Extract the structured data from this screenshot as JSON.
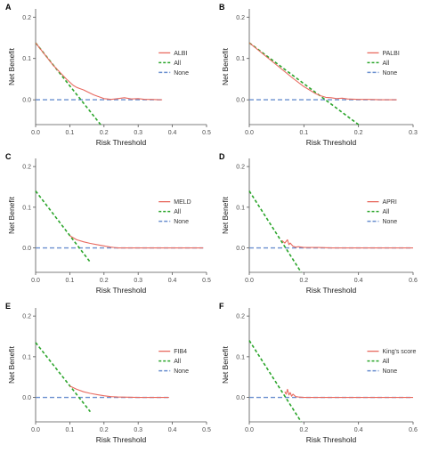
{
  "colors": {
    "model": "#e8695f",
    "all": "#2aa52a",
    "none": "#6a8fcf",
    "axis": "#555555"
  },
  "chart_data": [
    {
      "panel": "A",
      "type": "line",
      "xlabel": "Risk Threshold",
      "ylabel": "Net Benefit",
      "xlim": [
        0,
        0.5
      ],
      "xticks": [
        "0.0",
        "0.1",
        "0.2",
        "0.3",
        "0.4",
        "0.5"
      ],
      "ylim": [
        -0.06,
        0.22
      ],
      "yticks": [
        "0.0",
        "0.1",
        "0.2"
      ],
      "legend_position": "right",
      "series": [
        {
          "name": "ALBI",
          "key": "model",
          "style": "solid",
          "x": [
            0.0,
            0.05,
            0.09,
            0.11,
            0.12,
            0.13,
            0.14,
            0.15,
            0.16,
            0.17,
            0.18,
            0.19,
            0.2,
            0.21,
            0.22,
            0.24,
            0.26,
            0.28,
            0.3,
            0.32,
            0.34,
            0.36,
            0.37
          ],
          "y": [
            0.138,
            0.085,
            0.05,
            0.035,
            0.03,
            0.027,
            0.024,
            0.02,
            0.016,
            0.012,
            0.009,
            0.006,
            0.003,
            0.002,
            0.001,
            0.003,
            0.005,
            0.002,
            0.003,
            0.001,
            0.001,
            0.0,
            0.0
          ]
        },
        {
          "name": "All",
          "key": "all",
          "style": "dashed",
          "x": [
            0.0,
            0.19
          ],
          "y": [
            0.138,
            -0.06
          ]
        },
        {
          "name": "None",
          "key": "none",
          "style": "dashed",
          "x": [
            0.0,
            0.37
          ],
          "y": [
            0.0,
            0.0
          ]
        }
      ]
    },
    {
      "panel": "B",
      "type": "line",
      "xlabel": "Risk Threshold",
      "ylabel": "Net Benefit",
      "xlim": [
        0,
        0.3
      ],
      "xticks": [
        "0.0",
        "0.1",
        "0.2",
        "0.3"
      ],
      "ylim": [
        -0.06,
        0.22
      ],
      "yticks": [
        "0.0",
        "0.1",
        "0.2"
      ],
      "legend_position": "right",
      "series": [
        {
          "name": "PALBI",
          "key": "model",
          "style": "solid",
          "x": [
            0.0,
            0.04,
            0.08,
            0.1,
            0.11,
            0.12,
            0.13,
            0.135,
            0.14,
            0.15,
            0.16,
            0.17,
            0.18,
            0.2,
            0.22,
            0.24,
            0.26,
            0.27
          ],
          "y": [
            0.138,
            0.095,
            0.052,
            0.032,
            0.024,
            0.016,
            0.01,
            0.008,
            0.006,
            0.005,
            0.003,
            0.004,
            0.002,
            0.001,
            0.001,
            0.0,
            0.0,
            0.0
          ]
        },
        {
          "name": "All",
          "key": "all",
          "style": "dashed",
          "x": [
            0.0,
            0.2
          ],
          "y": [
            0.138,
            -0.06
          ]
        },
        {
          "name": "None",
          "key": "none",
          "style": "dashed",
          "x": [
            0.0,
            0.27
          ],
          "y": [
            0.0,
            0.0
          ]
        }
      ]
    },
    {
      "panel": "C",
      "type": "line",
      "xlabel": "Risk Threshold",
      "ylabel": "Net Benefit",
      "xlim": [
        0,
        0.5
      ],
      "xticks": [
        "0.0",
        "0.1",
        "0.2",
        "0.3",
        "0.4",
        "0.5"
      ],
      "ylim": [
        -0.06,
        0.22
      ],
      "yticks": [
        "0.0",
        "0.1",
        "0.2"
      ],
      "legend_position": "right",
      "series": [
        {
          "name": "MELD",
          "key": "model",
          "style": "solid",
          "x": [
            0.1,
            0.12,
            0.14,
            0.16,
            0.18,
            0.2,
            0.22,
            0.24,
            0.3,
            0.4,
            0.49
          ],
          "y": [
            0.03,
            0.02,
            0.015,
            0.011,
            0.008,
            0.005,
            0.002,
            0.0,
            0.0,
            0.0,
            0.0
          ]
        },
        {
          "name": "All",
          "key": "all",
          "style": "dashed",
          "x": [
            0.0,
            0.16
          ],
          "y": [
            0.14,
            -0.035
          ]
        },
        {
          "name": "None",
          "key": "none",
          "style": "dashed",
          "x": [
            0.0,
            0.49
          ],
          "y": [
            0.0,
            0.0
          ]
        }
      ]
    },
    {
      "panel": "D",
      "type": "line",
      "xlabel": "Risk Threshold",
      "ylabel": "Net Benefit",
      "xlim": [
        0,
        0.6
      ],
      "xticks": [
        "0.0",
        "0.2",
        "0.4",
        "0.6"
      ],
      "ylim": [
        -0.06,
        0.22
      ],
      "yticks": [
        "0.0",
        "0.1",
        "0.2"
      ],
      "legend_position": "right",
      "series": [
        {
          "name": "APRI",
          "key": "model",
          "style": "solid",
          "x": [
            0.12,
            0.13,
            0.14,
            0.145,
            0.15,
            0.16,
            0.17,
            0.18,
            0.2,
            0.25,
            0.3,
            0.4,
            0.5,
            0.6
          ],
          "y": [
            0.018,
            0.012,
            0.02,
            0.008,
            0.012,
            0.004,
            0.002,
            0.003,
            0.001,
            0.001,
            0.0,
            0.0,
            0.0,
            0.0
          ]
        },
        {
          "name": "All",
          "key": "all",
          "style": "dashed",
          "x": [
            0.0,
            0.19
          ],
          "y": [
            0.14,
            -0.06
          ]
        },
        {
          "name": "None",
          "key": "none",
          "style": "dashed",
          "x": [
            0.0,
            0.6
          ],
          "y": [
            0.0,
            0.0
          ]
        }
      ]
    },
    {
      "panel": "E",
      "type": "line",
      "xlabel": "Risk Threshold",
      "ylabel": "Net Benefit",
      "xlim": [
        0,
        0.5
      ],
      "xticks": [
        "0.0",
        "0.1",
        "0.2",
        "0.3",
        "0.4",
        "0.5"
      ],
      "ylim": [
        -0.06,
        0.22
      ],
      "yticks": [
        "0.0",
        "0.1",
        "0.2"
      ],
      "legend_position": "right",
      "series": [
        {
          "name": "FIB4",
          "key": "model",
          "style": "solid",
          "x": [
            0.1,
            0.12,
            0.14,
            0.16,
            0.18,
            0.2,
            0.22,
            0.24,
            0.3,
            0.39
          ],
          "y": [
            0.028,
            0.02,
            0.014,
            0.01,
            0.007,
            0.004,
            0.002,
            0.001,
            0.0,
            0.0
          ]
        },
        {
          "name": "All",
          "key": "all",
          "style": "dashed",
          "x": [
            0.0,
            0.16
          ],
          "y": [
            0.135,
            -0.035
          ]
        },
        {
          "name": "None",
          "key": "none",
          "style": "dashed",
          "x": [
            0.0,
            0.39
          ],
          "y": [
            0.0,
            0.0
          ]
        }
      ]
    },
    {
      "panel": "F",
      "type": "line",
      "xlabel": "Risk Threshold",
      "ylabel": "Net Benefit",
      "xlim": [
        0,
        0.6
      ],
      "xticks": [
        "0.0",
        "0.2",
        "0.4",
        "0.6"
      ],
      "ylim": [
        -0.06,
        0.22
      ],
      "yticks": [
        "0.0",
        "0.1",
        "0.2"
      ],
      "legend_position": "right",
      "series": [
        {
          "name": "King's score",
          "key": "model",
          "style": "solid",
          "x": [
            0.13,
            0.135,
            0.14,
            0.145,
            0.15,
            0.155,
            0.16,
            0.17,
            0.18,
            0.2,
            0.3,
            0.4,
            0.5,
            0.6
          ],
          "y": [
            0.014,
            0.008,
            0.02,
            0.006,
            0.012,
            0.003,
            0.008,
            0.002,
            0.001,
            0.0,
            0.0,
            0.0,
            0.0,
            0.0
          ]
        },
        {
          "name": "All",
          "key": "all",
          "style": "dashed",
          "x": [
            0.0,
            0.19
          ],
          "y": [
            0.14,
            -0.06
          ]
        },
        {
          "name": "None",
          "key": "none",
          "style": "dashed",
          "x": [
            0.0,
            0.6
          ],
          "y": [
            0.0,
            0.0
          ]
        }
      ]
    }
  ]
}
